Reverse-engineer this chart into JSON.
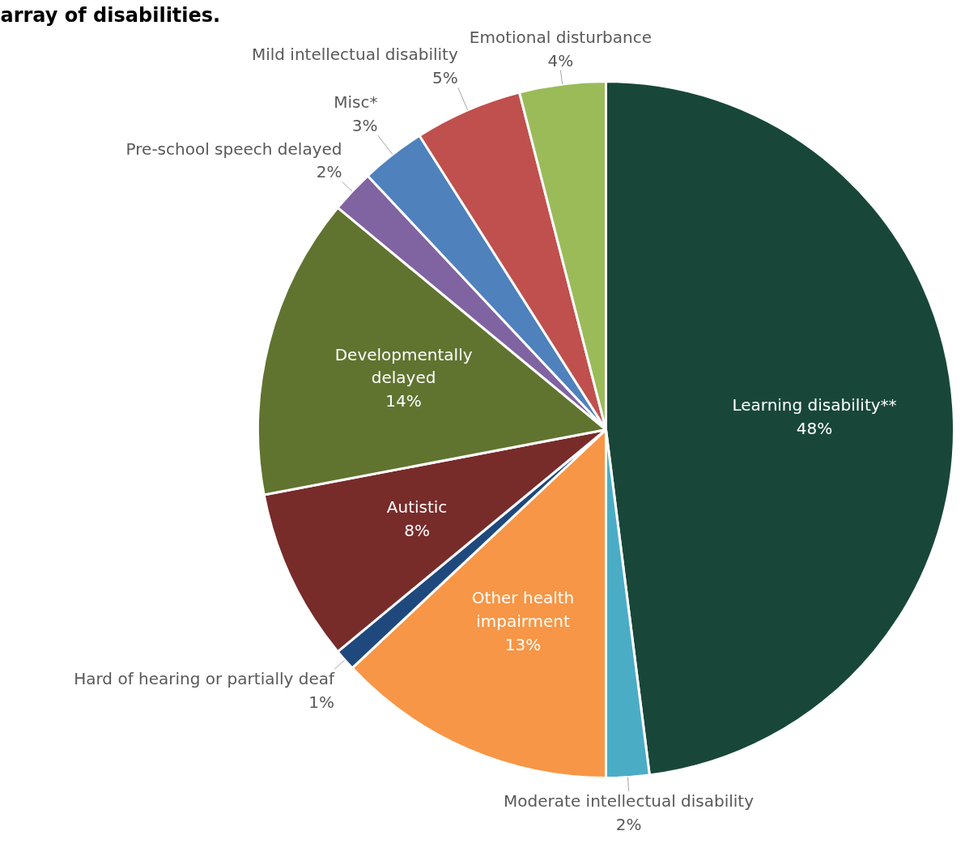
{
  "chart_data": {
    "type": "pie",
    "title": "array of disabilities.",
    "categories": [
      "Learning disability**",
      "Moderate intellectual disability",
      "Other health impairment",
      "Hard of hearing or partially deaf",
      "Autistic",
      "Developmentally delayed",
      "Pre-school speech delayed",
      "Misc*",
      "Mild intellectual disability",
      "Emotional disturbance"
    ],
    "values": [
      48,
      2,
      13,
      1,
      8,
      14,
      2,
      3,
      5,
      4
    ],
    "value_labels": [
      "48%",
      "2%",
      "13%",
      "1%",
      "8%",
      "14%",
      "2%",
      "3%",
      "5%",
      "4%"
    ],
    "colors": [
      "#18473a",
      "#4bacc6",
      "#f79646",
      "#1f497d",
      "#772c2a",
      "#607430",
      "#8064a2",
      "#4f81bd",
      "#c0504d",
      "#9bbb59"
    ]
  }
}
